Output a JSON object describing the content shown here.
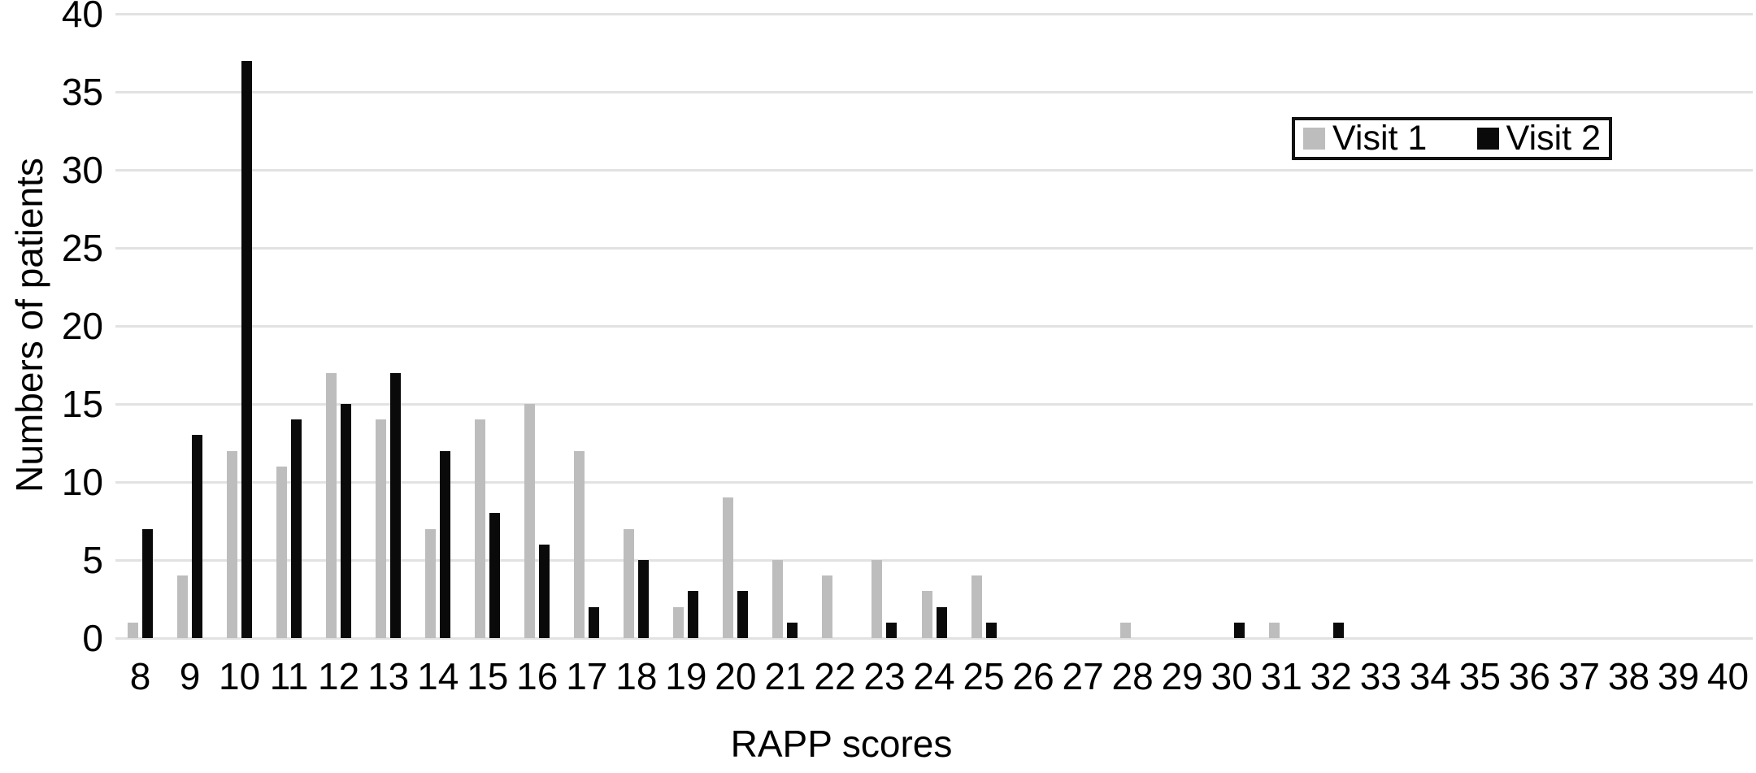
{
  "chart_data": {
    "type": "bar",
    "title": "",
    "xlabel": "RAPP scores",
    "ylabel": "Numbers of patients",
    "categories": [
      8,
      9,
      10,
      11,
      12,
      13,
      14,
      15,
      16,
      17,
      18,
      19,
      20,
      21,
      22,
      23,
      24,
      25,
      26,
      27,
      28,
      29,
      30,
      31,
      32,
      33,
      34,
      35,
      36,
      37,
      38,
      39,
      40
    ],
    "series": [
      {
        "name": "Visit 1",
        "color": "#bdbdbd",
        "values": [
          1,
          4,
          12,
          11,
          17,
          14,
          7,
          14,
          15,
          12,
          7,
          2,
          9,
          5,
          4,
          5,
          3,
          4,
          0,
          0,
          1,
          0,
          0,
          1,
          0,
          0,
          0,
          0,
          0,
          0,
          0,
          0,
          0
        ]
      },
      {
        "name": "Visit 2",
        "color": "#0a0a0a",
        "values": [
          7,
          13,
          37,
          14,
          15,
          17,
          12,
          8,
          6,
          2,
          5,
          3,
          3,
          1,
          0,
          1,
          2,
          1,
          0,
          0,
          0,
          0,
          1,
          0,
          1,
          0,
          0,
          0,
          0,
          0,
          0,
          0,
          0
        ]
      }
    ],
    "ylim": [
      0,
      40
    ],
    "ytick_step": 5,
    "y_ticks": [
      40,
      35,
      30,
      25,
      20,
      15,
      10,
      5,
      0
    ],
    "grid": true,
    "gridline_color": "#e2e2e2",
    "legend_position": "top-right"
  },
  "legend": {
    "items": [
      {
        "label": "Visit 1",
        "color": "#bdbdbd"
      },
      {
        "label": "Visit 2",
        "color": "#0a0a0a"
      }
    ]
  }
}
